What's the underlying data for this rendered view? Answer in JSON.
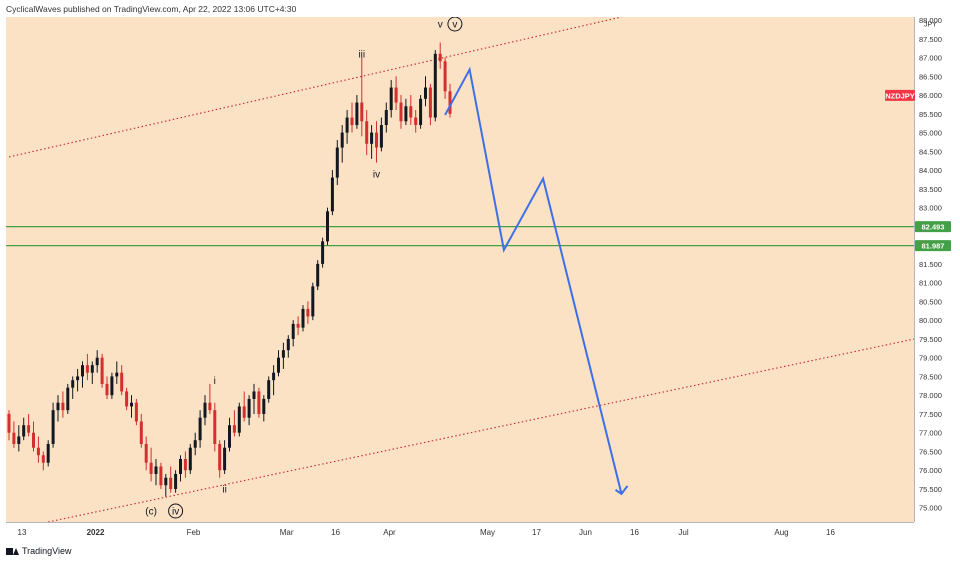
{
  "header": {
    "text": "CyclicalWaves published on TradingView.com, Apr 22, 2022 13:06 UTC+4:30"
  },
  "footer": {
    "brand": "TradingView"
  },
  "chart_data": {
    "type": "candlestick",
    "symbol": "NZDJPY",
    "currency": "JPY",
    "price_axis": {
      "ticks": [
        75.0,
        75.5,
        76.0,
        76.5,
        77.0,
        77.5,
        78.0,
        78.5,
        79.0,
        79.5,
        80.0,
        80.5,
        81.0,
        81.5,
        82.0,
        82.5,
        83.0,
        83.5,
        84.0,
        84.5,
        85.0,
        85.5,
        86.0,
        86.5,
        87.0,
        87.5,
        88.0
      ],
      "ylim": [
        74.62,
        88.08
      ]
    },
    "time_axis": {
      "ticks": [
        "13",
        "2022",
        "Feb",
        "Mar",
        "16",
        "Apr",
        "May",
        "17",
        "Jun",
        "16",
        "Jul",
        "Aug",
        "16"
      ],
      "tick_bar_index": [
        0,
        15,
        35,
        54,
        64,
        75,
        95,
        105,
        115,
        125,
        135,
        155,
        165
      ]
    },
    "price_labels": [
      {
        "text": "NZDJPY",
        "price": 85.99,
        "color": "#f23645"
      },
      {
        "text": "82.493",
        "price": 82.493,
        "color": "#43a047"
      },
      {
        "text": "81.987",
        "price": 81.987,
        "color": "#43a047"
      }
    ],
    "horizontal_levels": [
      82.493,
      81.987
    ],
    "channel_lines": [
      {
        "points": [
          [
            0,
            84.35
          ],
          [
            125,
            88.08
          ]
        ],
        "color": "#c62828"
      },
      {
        "points": [
          [
            8,
            74.62
          ],
          [
            187,
            79.56
          ]
        ],
        "color": "#c62828"
      }
    ],
    "projection_path": [
      [
        89,
        85.47
      ],
      [
        94,
        86.68
      ],
      [
        101,
        81.87
      ],
      [
        109,
        83.77
      ],
      [
        125,
        75.37
      ]
    ],
    "projection_color": "#3d6fe8",
    "wave_labels": [
      {
        "text": "iii",
        "bar": 72,
        "price": 87.0
      },
      {
        "text": "iv",
        "bar": 75,
        "price": 83.8
      },
      {
        "text": "v",
        "bar": 88,
        "price": 87.8
      },
      {
        "text": "v",
        "bar": 91,
        "price": 87.8,
        "circled": true
      },
      {
        "text": "i",
        "bar": 42,
        "price": 78.3
      },
      {
        "text": "ii",
        "bar": 44,
        "price": 75.4
      },
      {
        "text": "(c)",
        "bar": 29,
        "price": 74.82
      },
      {
        "text": "iv",
        "bar": 34,
        "price": 74.82,
        "circled": true
      }
    ],
    "ohlc": [
      [
        77.5,
        77.6,
        76.8,
        77.0
      ],
      [
        77.0,
        77.3,
        76.6,
        76.7
      ],
      [
        76.7,
        77.2,
        76.5,
        76.9
      ],
      [
        76.9,
        77.4,
        76.8,
        77.2
      ],
      [
        77.2,
        77.5,
        76.9,
        77.0
      ],
      [
        77.0,
        77.3,
        76.5,
        76.6
      ],
      [
        76.6,
        76.9,
        76.2,
        76.4
      ],
      [
        76.4,
        76.5,
        76.0,
        76.2
      ],
      [
        76.2,
        76.8,
        76.1,
        76.7
      ],
      [
        76.7,
        77.8,
        76.6,
        77.6
      ],
      [
        77.6,
        78.0,
        77.3,
        77.8
      ],
      [
        77.8,
        78.1,
        77.4,
        77.6
      ],
      [
        77.6,
        78.3,
        77.5,
        78.2
      ],
      [
        78.2,
        78.5,
        77.9,
        78.4
      ],
      [
        78.4,
        78.7,
        78.1,
        78.5
      ],
      [
        78.5,
        78.9,
        78.2,
        78.8
      ],
      [
        78.8,
        79.1,
        78.4,
        78.6
      ],
      [
        78.6,
        78.9,
        78.3,
        78.8
      ],
      [
        78.8,
        79.2,
        78.6,
        79.0
      ],
      [
        79.0,
        79.1,
        78.2,
        78.3
      ],
      [
        78.3,
        78.5,
        77.9,
        78.0
      ],
      [
        78.0,
        78.6,
        77.9,
        78.5
      ],
      [
        78.5,
        78.9,
        78.3,
        78.6
      ],
      [
        78.6,
        78.8,
        78.0,
        78.1
      ],
      [
        78.1,
        78.2,
        77.6,
        77.7
      ],
      [
        77.7,
        78.0,
        77.4,
        77.8
      ],
      [
        77.8,
        77.9,
        77.2,
        77.3
      ],
      [
        77.3,
        77.5,
        76.6,
        76.7
      ],
      [
        76.7,
        76.9,
        76.0,
        76.2
      ],
      [
        76.2,
        76.6,
        75.7,
        75.9
      ],
      [
        75.9,
        76.3,
        75.6,
        76.1
      ],
      [
        76.1,
        76.2,
        75.5,
        75.6
      ],
      [
        75.6,
        75.9,
        75.3,
        75.8
      ],
      [
        75.8,
        76.1,
        75.4,
        75.5
      ],
      [
        75.5,
        76.0,
        75.4,
        75.9
      ],
      [
        75.9,
        76.4,
        75.7,
        76.3
      ],
      [
        76.3,
        76.5,
        75.8,
        76.0
      ],
      [
        76.0,
        76.7,
        75.9,
        76.6
      ],
      [
        76.6,
        77.0,
        76.4,
        76.8
      ],
      [
        76.8,
        77.6,
        76.6,
        77.4
      ],
      [
        77.4,
        78.0,
        77.2,
        77.8
      ],
      [
        77.8,
        78.3,
        77.5,
        77.6
      ],
      [
        77.6,
        77.8,
        76.5,
        76.7
      ],
      [
        76.7,
        76.8,
        75.8,
        76.0
      ],
      [
        76.0,
        76.8,
        75.9,
        76.6
      ],
      [
        76.6,
        77.4,
        76.5,
        77.2
      ],
      [
        77.2,
        77.6,
        76.9,
        77.0
      ],
      [
        77.0,
        77.8,
        76.9,
        77.7
      ],
      [
        77.7,
        78.1,
        77.3,
        77.4
      ],
      [
        77.4,
        78.0,
        77.2,
        77.9
      ],
      [
        77.9,
        78.3,
        77.5,
        78.1
      ],
      [
        78.1,
        78.2,
        77.4,
        77.5
      ],
      [
        77.5,
        78.0,
        77.3,
        77.9
      ],
      [
        77.9,
        78.5,
        77.8,
        78.4
      ],
      [
        78.4,
        78.8,
        78.0,
        78.6
      ],
      [
        78.6,
        79.2,
        78.5,
        79.0
      ],
      [
        79.0,
        79.4,
        78.7,
        79.2
      ],
      [
        79.2,
        79.6,
        79.0,
        79.5
      ],
      [
        79.5,
        80.0,
        79.3,
        79.9
      ],
      [
        79.9,
        80.1,
        79.6,
        79.8
      ],
      [
        79.8,
        80.4,
        79.7,
        80.3
      ],
      [
        80.3,
        80.5,
        79.9,
        80.1
      ],
      [
        80.1,
        81.0,
        80.0,
        80.9
      ],
      [
        80.9,
        81.6,
        80.8,
        81.5
      ],
      [
        81.5,
        82.2,
        81.4,
        82.1
      ],
      [
        82.1,
        83.0,
        82.0,
        82.9
      ],
      [
        82.9,
        84.0,
        82.8,
        83.8
      ],
      [
        83.8,
        84.8,
        83.6,
        84.6
      ],
      [
        84.6,
        85.2,
        84.2,
        85.0
      ],
      [
        85.0,
        85.6,
        84.7,
        85.4
      ],
      [
        85.4,
        85.8,
        85.0,
        85.2
      ],
      [
        85.2,
        86.0,
        85.1,
        85.8
      ],
      [
        85.8,
        87.0,
        84.9,
        85.3
      ],
      [
        85.3,
        85.6,
        84.4,
        84.7
      ],
      [
        84.7,
        85.2,
        84.3,
        85.0
      ],
      [
        85.0,
        85.3,
        84.2,
        84.6
      ],
      [
        84.6,
        85.4,
        84.5,
        85.2
      ],
      [
        85.2,
        85.8,
        85.0,
        85.6
      ],
      [
        85.6,
        86.4,
        85.4,
        86.2
      ],
      [
        86.2,
        86.5,
        85.6,
        85.8
      ],
      [
        85.8,
        86.0,
        85.1,
        85.3
      ],
      [
        85.3,
        85.9,
        85.2,
        85.7
      ],
      [
        85.7,
        86.0,
        85.2,
        85.4
      ],
      [
        85.4,
        85.6,
        85.0,
        85.2
      ],
      [
        85.2,
        86.0,
        85.1,
        85.9
      ],
      [
        85.9,
        86.5,
        85.7,
        86.2
      ],
      [
        86.2,
        86.3,
        85.2,
        85.4
      ],
      [
        85.4,
        87.2,
        85.3,
        87.1
      ],
      [
        87.1,
        87.4,
        86.7,
        86.9
      ],
      [
        86.9,
        87.0,
        85.9,
        86.1
      ],
      [
        86.1,
        86.3,
        85.4,
        85.5
      ]
    ]
  }
}
